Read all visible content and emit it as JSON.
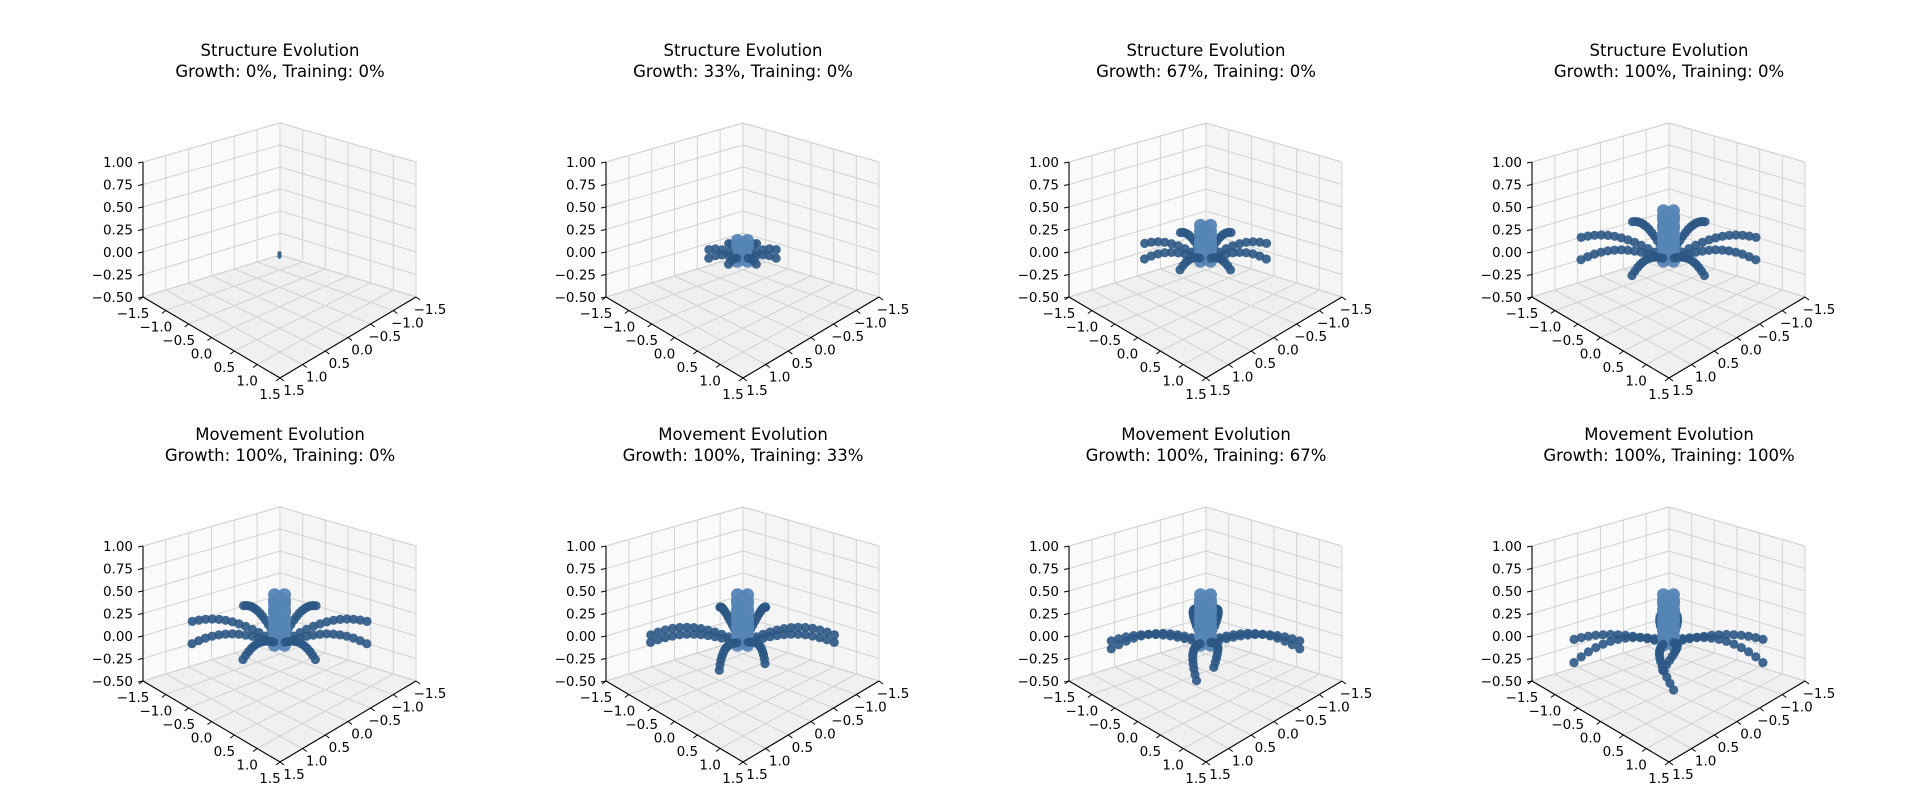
{
  "colors": {
    "body": "#5585b5",
    "legs": "#2c5885",
    "grid": "#d3d3d3",
    "pane": "#cfcfcf",
    "axis": "#000000"
  },
  "chart_data": [
    {
      "type": "scatter3d",
      "title_line1": "Structure Evolution",
      "title_line2": "Growth: 0%, Training: 0%",
      "growth": 0,
      "training": 0,
      "x_ticks": [
        "−1.5",
        "−1.0",
        "−0.5",
        "0.0",
        "0.5",
        "1.0",
        "1.5"
      ],
      "y_ticks": [
        "−1.5",
        "−1.0",
        "−0.5",
        "0.0",
        "0.5",
        "1.0",
        "1.5"
      ],
      "z_ticks": [
        "1.00",
        "0.75",
        "0.50",
        "0.25",
        "0.00",
        "−0.25",
        "−0.50"
      ],
      "xlim": [
        -1.5,
        1.5
      ],
      "ylim": [
        -1.5,
        1.5
      ],
      "zlim": [
        -0.5,
        1.0
      ],
      "grid": true
    },
    {
      "type": "scatter3d",
      "title_line1": "Structure Evolution",
      "title_line2": "Growth: 33%, Training: 0%",
      "growth": 0.33,
      "training": 0,
      "x_ticks": [
        "−1.5",
        "−1.0",
        "−0.5",
        "0.0",
        "0.5",
        "1.0",
        "1.5"
      ],
      "y_ticks": [
        "−1.5",
        "−1.0",
        "−0.5",
        "0.0",
        "0.5",
        "1.0",
        "1.5"
      ],
      "z_ticks": [
        "1.00",
        "0.75",
        "0.50",
        "0.25",
        "0.00",
        "−0.25",
        "−0.50"
      ],
      "xlim": [
        -1.5,
        1.5
      ],
      "ylim": [
        -1.5,
        1.5
      ],
      "zlim": [
        -0.5,
        1.0
      ],
      "grid": true
    },
    {
      "type": "scatter3d",
      "title_line1": "Structure Evolution",
      "title_line2": "Growth: 67%, Training: 0%",
      "growth": 0.67,
      "training": 0,
      "x_ticks": [
        "−1.5",
        "−1.0",
        "−0.5",
        "0.0",
        "0.5",
        "1.0",
        "1.5"
      ],
      "y_ticks": [
        "−1.5",
        "−1.0",
        "−0.5",
        "0.0",
        "0.5",
        "1.0",
        "1.5"
      ],
      "z_ticks": [
        "1.00",
        "0.75",
        "0.50",
        "0.25",
        "0.00",
        "−0.25",
        "−0.50"
      ],
      "xlim": [
        -1.5,
        1.5
      ],
      "ylim": [
        -1.5,
        1.5
      ],
      "zlim": [
        -0.5,
        1.0
      ],
      "grid": true
    },
    {
      "type": "scatter3d",
      "title_line1": "Structure Evolution",
      "title_line2": "Growth: 100%, Training: 0%",
      "growth": 1.0,
      "training": 0,
      "x_ticks": [
        "−1.5",
        "−1.0",
        "−0.5",
        "0.0",
        "0.5",
        "1.0",
        "1.5"
      ],
      "y_ticks": [
        "−1.5",
        "−1.0",
        "−0.5",
        "0.0",
        "0.5",
        "1.0",
        "1.5"
      ],
      "z_ticks": [
        "1.00",
        "0.75",
        "0.50",
        "0.25",
        "0.00",
        "−0.25",
        "−0.50"
      ],
      "xlim": [
        -1.5,
        1.5
      ],
      "ylim": [
        -1.5,
        1.5
      ],
      "zlim": [
        -0.5,
        1.0
      ],
      "grid": true
    },
    {
      "type": "scatter3d",
      "title_line1": "Movement Evolution",
      "title_line2": "Growth: 100%, Training: 0%",
      "growth": 1.0,
      "training": 0,
      "x_ticks": [
        "−1.5",
        "−1.0",
        "−0.5",
        "0.0",
        "0.5",
        "1.0",
        "1.5"
      ],
      "y_ticks": [
        "−1.5",
        "−1.0",
        "−0.5",
        "0.0",
        "0.5",
        "1.0",
        "1.5"
      ],
      "z_ticks": [
        "1.00",
        "0.75",
        "0.50",
        "0.25",
        "0.00",
        "−0.25",
        "−0.50"
      ],
      "xlim": [
        -1.5,
        1.5
      ],
      "ylim": [
        -1.5,
        1.5
      ],
      "zlim": [
        -0.5,
        1.0
      ],
      "grid": true
    },
    {
      "type": "scatter3d",
      "title_line1": "Movement Evolution",
      "title_line2": "Growth: 100%, Training: 33%",
      "growth": 1.0,
      "training": 0.33,
      "x_ticks": [
        "−1.5",
        "−1.0",
        "−0.5",
        "0.0",
        "0.5",
        "1.0",
        "1.5"
      ],
      "y_ticks": [
        "−1.5",
        "−1.0",
        "−0.5",
        "0.0",
        "0.5",
        "1.0",
        "1.5"
      ],
      "z_ticks": [
        "1.00",
        "0.75",
        "0.50",
        "0.25",
        "0.00",
        "−0.25",
        "−0.50"
      ],
      "xlim": [
        -1.5,
        1.5
      ],
      "ylim": [
        -1.5,
        1.5
      ],
      "zlim": [
        -0.5,
        1.0
      ],
      "grid": true
    },
    {
      "type": "scatter3d",
      "title_line1": "Movement Evolution",
      "title_line2": "Growth: 100%, Training: 67%",
      "growth": 1.0,
      "training": 0.67,
      "x_ticks": [
        "−1.5",
        "−1.0",
        "−0.5",
        "0.0",
        "0.5",
        "1.0",
        "1.5"
      ],
      "y_ticks": [
        "−1.5",
        "−1.0",
        "−0.5",
        "0.0",
        "0.5",
        "1.0",
        "1.5"
      ],
      "z_ticks": [
        "1.00",
        "0.75",
        "0.50",
        "0.25",
        "0.00",
        "−0.25",
        "−0.50"
      ],
      "xlim": [
        -1.5,
        1.5
      ],
      "ylim": [
        -1.5,
        1.5
      ],
      "zlim": [
        -0.5,
        1.0
      ],
      "grid": true
    },
    {
      "type": "scatter3d",
      "title_line1": "Movement Evolution",
      "title_line2": "Growth: 100%, Training: 100%",
      "growth": 1.0,
      "training": 1.0,
      "x_ticks": [
        "−1.5",
        "−1.0",
        "−0.5",
        "0.0",
        "0.5",
        "1.0",
        "1.5"
      ],
      "y_ticks": [
        "−1.5",
        "−1.0",
        "−0.5",
        "0.0",
        "0.5",
        "1.0",
        "1.5"
      ],
      "z_ticks": [
        "1.00",
        "0.75",
        "0.50",
        "0.25",
        "0.00",
        "−0.25",
        "−0.50"
      ],
      "xlim": [
        -1.5,
        1.5
      ],
      "ylim": [
        -1.5,
        1.5
      ],
      "zlim": [
        -0.5,
        1.0
      ],
      "grid": true
    }
  ]
}
